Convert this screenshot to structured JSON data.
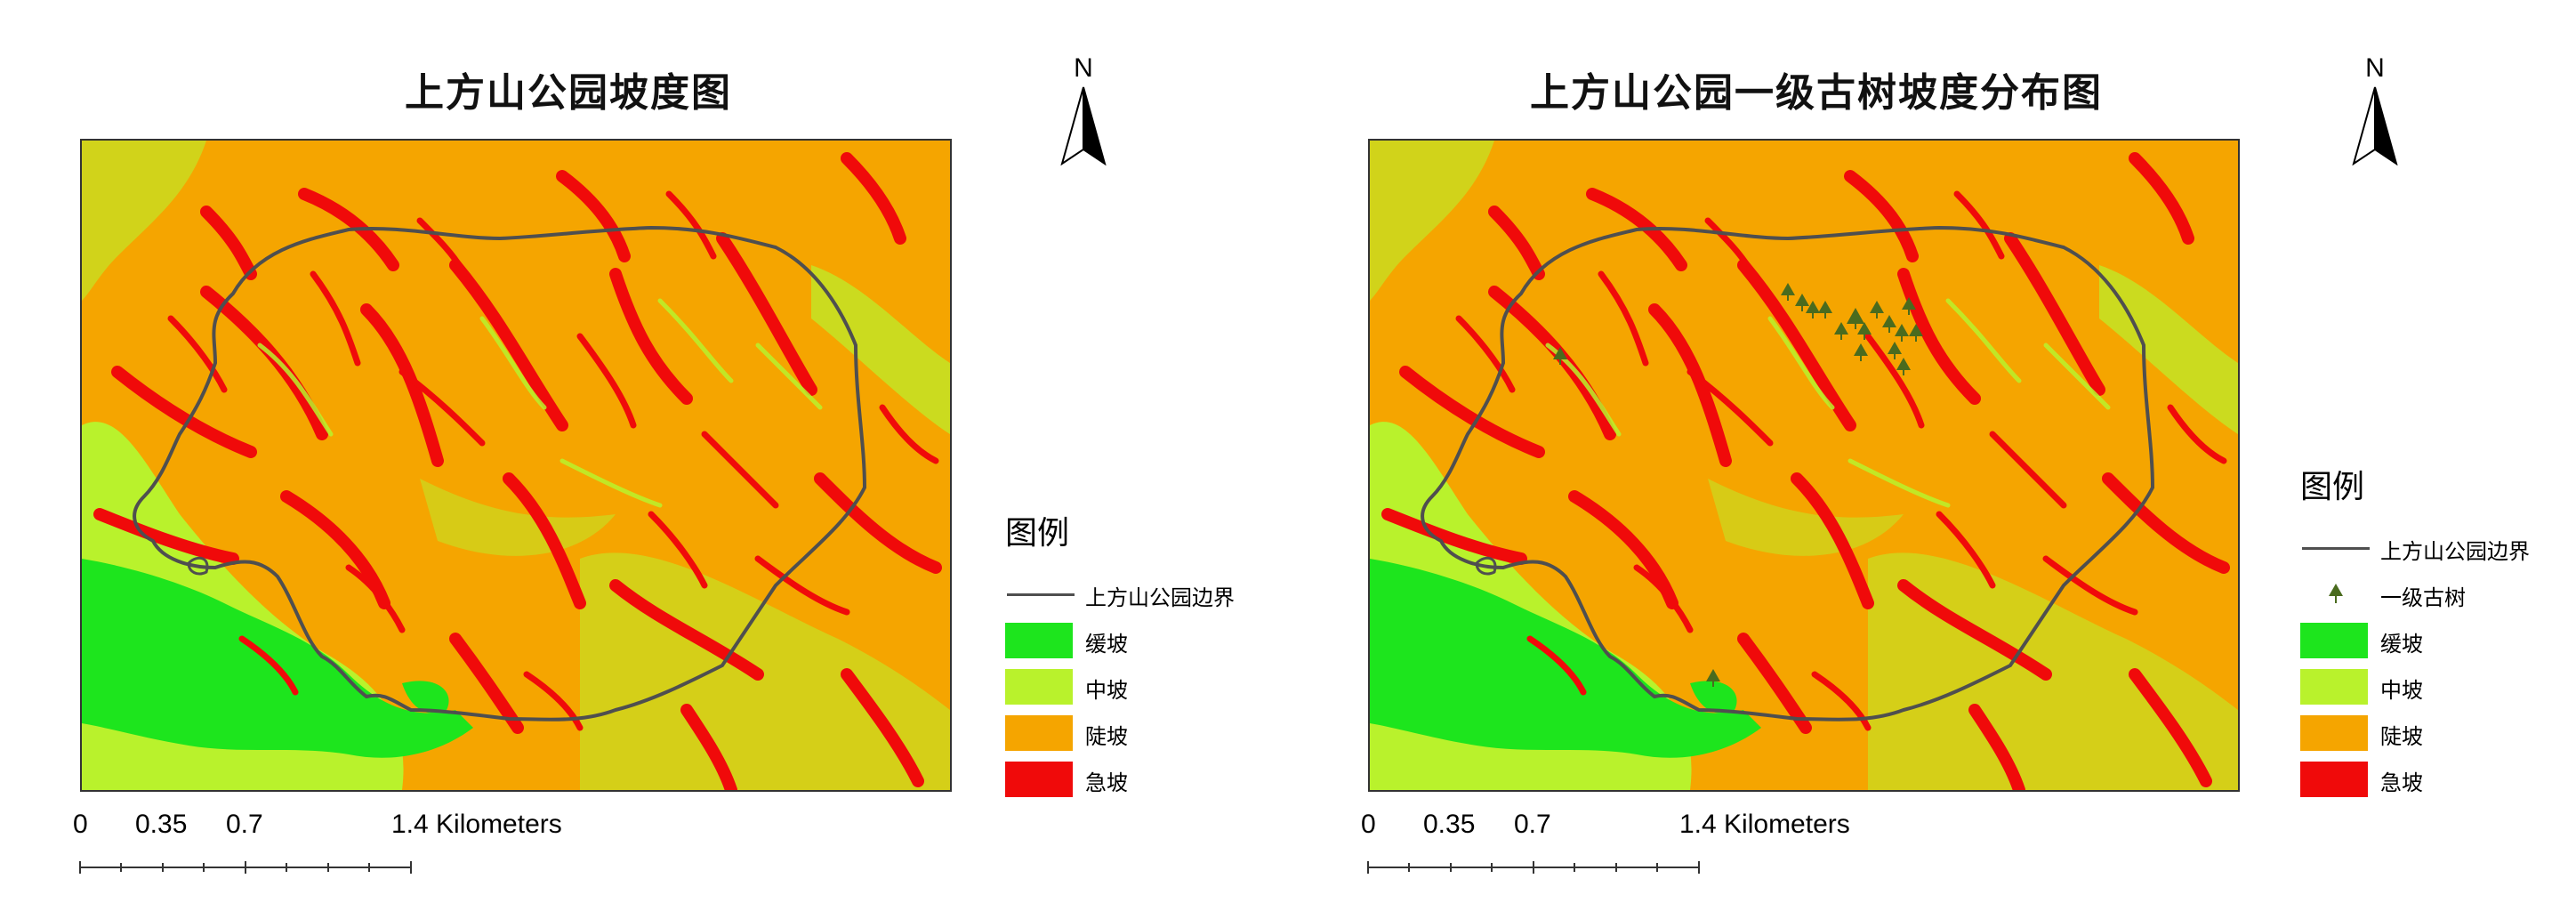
{
  "maps": [
    {
      "title": "上方山公园坡度图",
      "north_label": "N",
      "legend": {
        "title": "图例",
        "items": [
          {
            "type": "line",
            "label": "上方山公园边界",
            "color": "#4f4f4f"
          },
          {
            "type": "fill",
            "label": "缓坡",
            "color": "#1de51d"
          },
          {
            "type": "fill",
            "label": "中坡",
            "color": "#b9f22c"
          },
          {
            "type": "fill",
            "label": "陡坡",
            "color": "#f5a500"
          },
          {
            "type": "fill",
            "label": "急坡",
            "color": "#f00a0a"
          }
        ]
      },
      "scale": {
        "ticks": [
          "0",
          "0.35",
          "0.7",
          "1.4 Kilometers"
        ]
      }
    },
    {
      "title": "上方山公园一级古树坡度分布图",
      "north_label": "N",
      "legend": {
        "title": "图例",
        "items": [
          {
            "type": "line",
            "label": "上方山公园边界",
            "color": "#4f4f4f"
          },
          {
            "type": "tree",
            "label": "一级古树",
            "color": "#4a6b1e"
          },
          {
            "type": "fill",
            "label": "缓坡",
            "color": "#1de51d"
          },
          {
            "type": "fill",
            "label": "中坡",
            "color": "#b9f22c"
          },
          {
            "type": "fill",
            "label": "陡坡",
            "color": "#f5a500"
          },
          {
            "type": "fill",
            "label": "急坡",
            "color": "#f00a0a"
          }
        ]
      },
      "scale": {
        "ticks": [
          "0",
          "0.35",
          "0.7",
          "1.4 Kilometers"
        ]
      }
    }
  ]
}
